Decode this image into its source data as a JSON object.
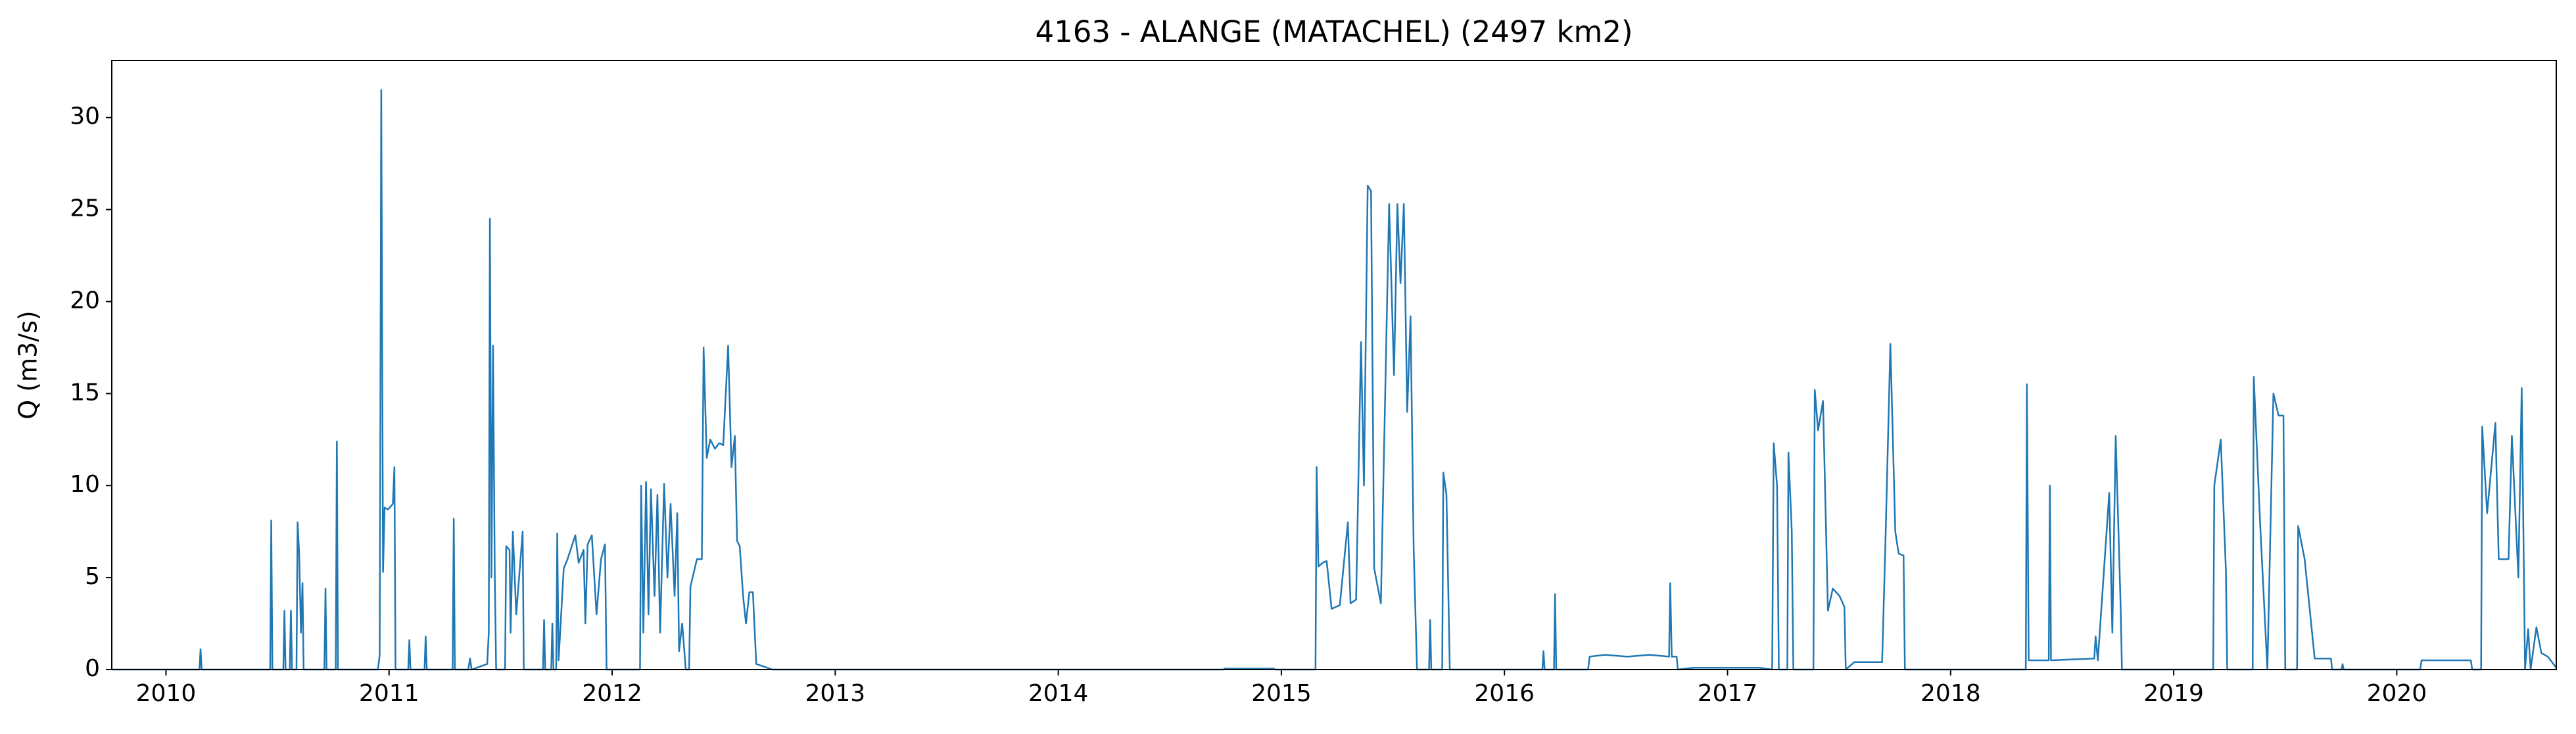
{
  "chart_data": {
    "type": "line",
    "title": "4163 - ALANGE (MATACHEL) (2497 km2)",
    "ylabel": "Q (m3/s)",
    "color": "#1f77b4",
    "xlim": [
      2009.757,
      2020.715
    ],
    "xticks": [
      2010,
      2011,
      2012,
      2013,
      2014,
      2015,
      2016,
      2017,
      2018,
      2019,
      2020
    ],
    "ylim": [
      0,
      33.1
    ],
    "yticks": [
      0,
      5,
      10,
      15,
      20,
      25,
      30
    ],
    "x": [
      2009.757,
      2010.15,
      2010.155,
      2010.16,
      2010.467,
      2010.472,
      2010.477,
      2010.526,
      2010.531,
      2010.536,
      2010.555,
      2010.56,
      2010.565,
      2010.585,
      2010.59,
      2010.597,
      2010.605,
      2010.612,
      2010.617,
      2010.71,
      2010.715,
      2010.72,
      2010.761,
      2010.766,
      2010.771,
      2010.95,
      2010.958,
      2010.965,
      2010.973,
      2010.98,
      2010.995,
      2011.01,
      2011.017,
      2011.024,
      2011.029,
      2011.086,
      2011.091,
      2011.096,
      2011.159,
      2011.164,
      2011.169,
      2011.285,
      2011.29,
      2011.295,
      2011.355,
      2011.363,
      2011.37,
      2011.44,
      2011.447,
      2011.452,
      2011.459,
      2011.466,
      2011.474,
      2011.48,
      2011.52,
      2011.525,
      2011.54,
      2011.545,
      2011.555,
      2011.57,
      2011.599,
      2011.604,
      2011.69,
      2011.695,
      2011.7,
      2011.727,
      2011.732,
      2011.737,
      2011.749,
      2011.754,
      2011.76,
      2011.783,
      2011.8,
      2011.835,
      2011.85,
      2011.872,
      2011.88,
      2011.89,
      2011.909,
      2011.93,
      2011.95,
      2011.968,
      2011.975,
      2012.125,
      2012.13,
      2012.14,
      2012.152,
      2012.163,
      2012.174,
      2012.19,
      2012.203,
      2012.215,
      2012.233,
      2012.248,
      2012.262,
      2012.28,
      2012.292,
      2012.3,
      2012.314,
      2012.33,
      2012.345,
      2012.351,
      2012.38,
      2012.402,
      2012.41,
      2012.424,
      2012.44,
      2012.461,
      2012.48,
      2012.498,
      2012.52,
      2012.535,
      2012.55,
      2012.56,
      2012.572,
      2012.587,
      2012.6,
      2012.615,
      2012.631,
      2012.646,
      2012.719,
      2014.74,
      2014.746,
      2014.967,
      2014.972,
      2015.153,
      2015.158,
      2015.166,
      2015.185,
      2015.203,
      2015.225,
      2015.262,
      2015.298,
      2015.31,
      2015.335,
      2015.357,
      2015.37,
      2015.387,
      2015.402,
      2015.416,
      2015.446,
      2015.483,
      2015.505,
      2015.52,
      2015.534,
      2015.549,
      2015.564,
      2015.579,
      2015.593,
      2015.608,
      2015.662,
      2015.667,
      2015.672,
      2015.721,
      2015.726,
      2015.74,
      2015.755,
      2016.17,
      2016.175,
      2016.18,
      2016.222,
      2016.227,
      2016.232,
      2016.375,
      2016.382,
      2016.45,
      2016.551,
      2016.65,
      2016.738,
      2016.743,
      2016.75,
      2016.772,
      2016.777,
      2016.846,
      2017.141,
      2017.2,
      2017.207,
      2017.222,
      2017.23,
      2017.268,
      2017.273,
      2017.288,
      2017.295,
      2017.385,
      2017.391,
      2017.406,
      2017.428,
      2017.45,
      2017.472,
      2017.502,
      2017.524,
      2017.53,
      2017.568,
      2017.693,
      2017.708,
      2017.73,
      2017.752,
      2017.767,
      2017.789,
      2017.795,
      2018.337,
      2018.342,
      2018.35,
      2018.44,
      2018.445,
      2018.45,
      2018.644,
      2018.65,
      2018.66,
      2018.711,
      2018.725,
      2018.74,
      2018.762,
      2018.768,
      2019.177,
      2019.182,
      2019.211,
      2019.234,
      2019.24,
      2019.354,
      2019.359,
      2019.388,
      2019.42,
      2019.447,
      2019.47,
      2019.492,
      2019.5,
      2019.553,
      2019.558,
      2019.587,
      2019.632,
      2019.705,
      2019.71,
      2019.752,
      2019.757,
      2019.762,
      2020.105,
      2020.111,
      2020.332,
      2020.338,
      2020.378,
      2020.383,
      2020.405,
      2020.442,
      2020.457,
      2020.501,
      2020.516,
      2020.545,
      2020.56,
      2020.575,
      2020.589,
      2020.6,
      2020.626,
      2020.648,
      2020.677,
      2020.715
    ],
    "values": [
      0,
      0,
      1.1,
      0,
      0,
      8.1,
      0,
      0,
      3.2,
      0,
      0,
      3.2,
      0,
      0,
      8,
      6.3,
      2,
      4.7,
      0,
      0,
      4.4,
      0,
      0,
      12.4,
      0,
      0,
      0.8,
      31.5,
      5.3,
      8.8,
      8.7,
      8.9,
      9,
      11,
      0,
      0,
      1.6,
      0,
      0,
      1.8,
      0,
      0,
      8.2,
      0,
      0,
      0.6,
      0,
      0.3,
      2,
      24.5,
      5,
      17.6,
      5,
      0,
      0,
      6.7,
      6.5,
      2,
      7.5,
      3,
      7.5,
      0,
      0,
      2.7,
      0,
      0,
      2.5,
      0,
      0,
      7.4,
      0.5,
      5.5,
      6,
      7.3,
      5.8,
      6.5,
      2.5,
      6.8,
      7.3,
      3,
      6,
      6.8,
      0,
      0,
      10,
      2,
      10.2,
      3,
      9.8,
      4,
      9.5,
      2,
      10.1,
      5,
      9,
      4,
      8.5,
      1,
      2.5,
      0,
      0,
      4.5,
      6,
      6,
      17.5,
      11.5,
      12.5,
      12,
      12.3,
      12.2,
      17.6,
      11,
      12.7,
      7,
      6.7,
      4,
      2.5,
      4.2,
      4.2,
      0.3,
      0,
      0,
      0.05,
      0.05,
      0,
      0,
      11,
      5.6,
      5.8,
      5.9,
      3.3,
      3.5,
      8,
      3.6,
      3.8,
      17.8,
      10,
      26.3,
      26,
      5.5,
      3.6,
      25.3,
      16,
      25.3,
      21,
      25.3,
      14,
      19.2,
      6.6,
      0,
      0,
      2.7,
      0,
      0,
      10.7,
      9.5,
      0,
      0,
      1,
      0,
      0,
      4.1,
      0,
      0,
      0.7,
      0.8,
      0.7,
      0.8,
      0.7,
      4.7,
      0.7,
      0.7,
      0,
      0.1,
      0.1,
      0,
      12.3,
      10,
      0,
      0,
      11.8,
      7.5,
      0,
      0,
      15.2,
      13,
      14.6,
      3.2,
      4.4,
      4,
      3.4,
      0,
      0.4,
      0.4,
      7,
      17.7,
      7.5,
      6.3,
      6.2,
      0,
      0,
      15.5,
      0.5,
      0.5,
      10,
      0.5,
      0.6,
      1.8,
      0.5,
      9.6,
      2,
      12.7,
      3.5,
      0,
      0,
      10,
      12.5,
      5.4,
      0,
      0,
      15.9,
      7.8,
      0,
      15,
      13.8,
      13.8,
      0,
      0,
      7.8,
      6,
      0.6,
      0.6,
      0,
      0,
      0.3,
      0,
      0,
      0.5,
      0.5,
      0,
      0,
      13.2,
      8.5,
      13.4,
      6,
      6,
      12.7,
      5,
      15.3,
      0,
      2.2,
      0,
      2.3,
      0.9,
      0.7,
      0.1
    ]
  }
}
